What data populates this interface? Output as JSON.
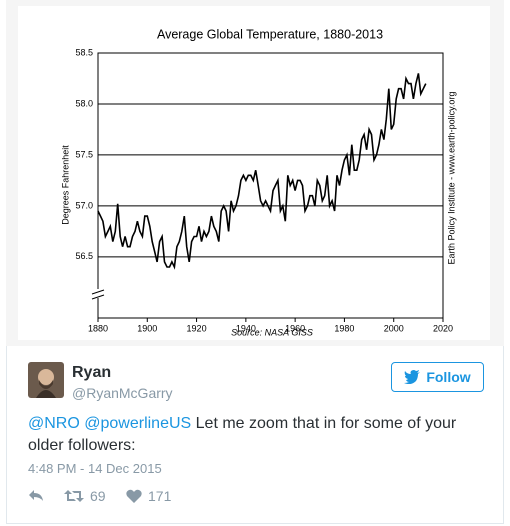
{
  "chart_data": {
    "type": "line",
    "title": "Average Global Temperature, 1880-2013",
    "y_label": "Degrees Fahrenheit",
    "source": "Source: NASA GISS",
    "credit": "Earth Policy Institute - www.earth-policy.org",
    "x": [
      1880,
      1881,
      1882,
      1883,
      1884,
      1885,
      1886,
      1887,
      1888,
      1889,
      1890,
      1891,
      1892,
      1893,
      1894,
      1895,
      1896,
      1897,
      1898,
      1899,
      1900,
      1901,
      1902,
      1903,
      1904,
      1905,
      1906,
      1907,
      1908,
      1909,
      1910,
      1911,
      1912,
      1913,
      1914,
      1915,
      1916,
      1917,
      1918,
      1919,
      1920,
      1921,
      1922,
      1923,
      1924,
      1925,
      1926,
      1927,
      1928,
      1929,
      1930,
      1931,
      1932,
      1933,
      1934,
      1935,
      1936,
      1937,
      1938,
      1939,
      1940,
      1941,
      1942,
      1943,
      1944,
      1945,
      1946,
      1947,
      1948,
      1949,
      1950,
      1951,
      1952,
      1953,
      1954,
      1955,
      1956,
      1957,
      1958,
      1959,
      1960,
      1961,
      1962,
      1963,
      1964,
      1965,
      1966,
      1967,
      1968,
      1969,
      1970,
      1971,
      1972,
      1973,
      1974,
      1975,
      1976,
      1977,
      1978,
      1979,
      1980,
      1981,
      1982,
      1983,
      1984,
      1985,
      1986,
      1987,
      1988,
      1989,
      1990,
      1991,
      1992,
      1993,
      1994,
      1995,
      1996,
      1997,
      1998,
      1999,
      2000,
      2001,
      2002,
      2003,
      2004,
      2005,
      2006,
      2007,
      2008,
      2009,
      2010,
      2011,
      2012,
      2013
    ],
    "series": [
      {
        "color": "#000000",
        "values": [
          56.95,
          56.9,
          56.85,
          56.7,
          56.75,
          56.8,
          56.65,
          56.75,
          57.02,
          56.7,
          56.6,
          56.7,
          56.6,
          56.6,
          56.7,
          56.75,
          56.85,
          56.75,
          56.7,
          56.9,
          56.9,
          56.8,
          56.65,
          56.55,
          56.45,
          56.65,
          56.7,
          56.45,
          56.4,
          56.4,
          56.45,
          56.4,
          56.6,
          56.65,
          56.75,
          56.9,
          56.6,
          56.45,
          56.65,
          56.7,
          56.7,
          56.8,
          56.65,
          56.75,
          56.7,
          56.75,
          56.9,
          56.8,
          56.75,
          56.65,
          56.95,
          57.0,
          56.95,
          56.75,
          57.05,
          56.95,
          57.0,
          57.1,
          57.25,
          57.3,
          57.25,
          57.3,
          57.3,
          57.25,
          57.35,
          57.2,
          57.05,
          57.0,
          57.05,
          57.0,
          56.95,
          57.15,
          57.2,
          57.25,
          56.95,
          57.0,
          56.85,
          57.3,
          57.2,
          57.25,
          57.15,
          57.25,
          57.25,
          57.2,
          56.95,
          57.0,
          57.1,
          57.1,
          57.0,
          57.25,
          57.2,
          57.05,
          57.1,
          57.3,
          57.0,
          57.05,
          56.95,
          57.3,
          57.2,
          57.35,
          57.45,
          57.5,
          57.3,
          57.6,
          57.35,
          57.35,
          57.45,
          57.65,
          57.7,
          57.55,
          57.75,
          57.7,
          57.45,
          57.5,
          57.6,
          57.75,
          57.65,
          57.85,
          58.15,
          57.75,
          57.8,
          58.05,
          58.15,
          58.15,
          58.05,
          58.25,
          58.2,
          58.2,
          58.05,
          58.2,
          58.3,
          58.1,
          58.15,
          58.2
        ]
      }
    ],
    "xlim": [
      1880,
      2020
    ],
    "xticks": [
      1880,
      1900,
      1920,
      1940,
      1960,
      1980,
      2000,
      2020
    ],
    "ylim": [
      55.9,
      58.5
    ],
    "yticks": [
      56.5,
      {
        "value": 57,
        "label": "57.0"
      },
      57.5,
      {
        "value": 58,
        "label": "58.0"
      },
      58.5
    ],
    "grid": true
  },
  "tweet": {
    "name": "Ryan",
    "handle": "@RyanMcGarry",
    "follow": "Follow",
    "mentions": [
      "@NRO",
      "@powerlineUS"
    ],
    "text": "Let me zoom that in for some of your older followers:",
    "timestamp": "4:48 PM - 14 Dec 2015",
    "retweets": 69,
    "likes": 171
  }
}
